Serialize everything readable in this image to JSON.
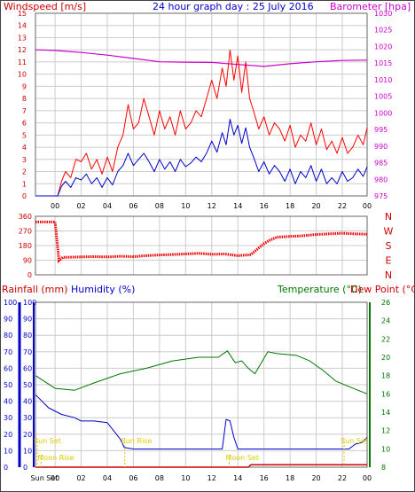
{
  "header": {
    "windspeed_label": "Windspeed [m/s]",
    "title": "24 hour graph day : 25 July 2016",
    "barometer_label": "Barometer [hpa]"
  },
  "labels": {
    "rainfall": "Rainfall (mm)",
    "humidity": "Humidity (%)",
    "temperature": "Temperature (°C)",
    "dewpoint": "Dew Point (°C)"
  },
  "colors": {
    "wind_gust": "#ff0000",
    "wind_avg": "#0000cc",
    "barometer": "#cc00cc",
    "wind_dir": "#ee0000",
    "rain_humidity_axis": "#0000cc",
    "temperature": "#007700",
    "dewpoint": "#cc0000",
    "sun_moon": "#ddcc00",
    "grid": "#cccccc"
  },
  "chart_data": [
    {
      "id": "wind_baro",
      "type": "line",
      "x_ticks": [
        "00",
        "02",
        "04",
        "06",
        "08",
        "10",
        "12",
        "14",
        "16",
        "18",
        "20",
        "22",
        "00"
      ],
      "x_range_hours": [
        -1.5,
        23.9
      ],
      "y_left": {
        "label": "Windspeed [m/s]",
        "ticks": [
          0,
          1,
          2,
          3,
          4,
          5,
          6,
          7,
          8,
          9,
          10,
          11,
          12,
          13,
          14,
          15
        ],
        "range": [
          0,
          15
        ]
      },
      "y_right": {
        "label": "Barometer [hpa]",
        "ticks": [
          975,
          980,
          985,
          990,
          995,
          1000,
          1005,
          1010,
          1015,
          1020,
          1025,
          1030
        ],
        "range": [
          975,
          1030
        ]
      },
      "series": [
        {
          "key": "gust",
          "axis": "left",
          "x": [
            -1.5,
            0.2,
            0.5,
            0.8,
            1.2,
            1.6,
            2.0,
            2.4,
            2.8,
            3.2,
            3.6,
            4.0,
            4.4,
            4.8,
            5.2,
            5.6,
            6.0,
            6.4,
            6.8,
            7.2,
            7.6,
            8.0,
            8.4,
            8.8,
            9.2,
            9.6,
            10.0,
            10.4,
            10.8,
            11.2,
            11.6,
            12.0,
            12.4,
            12.8,
            13.1,
            13.4,
            13.7,
            14.0,
            14.3,
            14.6,
            14.9,
            15.2,
            15.6,
            16.0,
            16.4,
            16.8,
            17.2,
            17.6,
            18.0,
            18.4,
            18.8,
            19.2,
            19.6,
            20.0,
            20.4,
            20.8,
            21.2,
            21.6,
            22.0,
            22.4,
            22.8,
            23.2,
            23.6,
            23.9
          ],
          "y": [
            0,
            0,
            1.2,
            2.0,
            1.5,
            3.0,
            2.8,
            3.5,
            2.2,
            3.0,
            1.8,
            3.2,
            2.0,
            4.0,
            5.0,
            7.5,
            5.5,
            6.0,
            8.0,
            6.5,
            5.0,
            7.0,
            5.5,
            6.5,
            5.0,
            7.0,
            5.5,
            6.0,
            7.0,
            6.5,
            8.0,
            9.5,
            8.0,
            10.5,
            9.0,
            12.0,
            9.5,
            11.5,
            8.5,
            11.0,
            8.0,
            7.0,
            5.5,
            6.5,
            5.0,
            6.0,
            5.5,
            4.5,
            5.8,
            4.0,
            5.0,
            4.5,
            6.0,
            4.2,
            5.5,
            3.8,
            4.5,
            3.5,
            4.8,
            3.5,
            4.0,
            5.0,
            4.2,
            5.6
          ]
        },
        {
          "key": "average",
          "axis": "left",
          "x": [
            -1.5,
            0.2,
            0.5,
            0.8,
            1.2,
            1.6,
            2.0,
            2.4,
            2.8,
            3.2,
            3.6,
            4.0,
            4.4,
            4.8,
            5.2,
            5.6,
            6.0,
            6.4,
            6.8,
            7.2,
            7.6,
            8.0,
            8.4,
            8.8,
            9.2,
            9.6,
            10.0,
            10.4,
            10.8,
            11.2,
            11.6,
            12.0,
            12.4,
            12.8,
            13.1,
            13.4,
            13.7,
            14.0,
            14.3,
            14.6,
            14.9,
            15.2,
            15.6,
            16.0,
            16.4,
            16.8,
            17.2,
            17.6,
            18.0,
            18.4,
            18.8,
            19.2,
            19.6,
            20.0,
            20.4,
            20.8,
            21.2,
            21.6,
            22.0,
            22.4,
            22.8,
            23.2,
            23.6,
            23.9
          ],
          "y": [
            0,
            0,
            0.8,
            1.2,
            0.7,
            1.5,
            1.3,
            1.8,
            1.0,
            1.5,
            0.7,
            1.5,
            0.9,
            2.0,
            2.5,
            3.5,
            2.5,
            3.0,
            3.5,
            2.8,
            2.0,
            3.0,
            2.2,
            2.8,
            2.0,
            3.0,
            2.4,
            2.7,
            3.2,
            2.8,
            3.5,
            4.5,
            3.6,
            5.2,
            4.2,
            6.3,
            5.0,
            5.8,
            4.3,
            5.6,
            4.0,
            3.2,
            2.0,
            2.8,
            1.8,
            2.5,
            2.0,
            1.2,
            2.2,
            1.0,
            2.0,
            1.5,
            2.5,
            1.2,
            2.2,
            1.0,
            1.5,
            1.0,
            2.0,
            1.2,
            1.5,
            2.2,
            1.6,
            2.4
          ]
        },
        {
          "key": "barometer",
          "axis": "right",
          "x": [
            -1.5,
            0,
            2,
            4,
            6,
            8,
            10,
            12,
            14,
            16,
            18,
            20,
            22,
            23.9
          ],
          "y": [
            1019,
            1018.8,
            1018.2,
            1017.4,
            1016.4,
            1015.4,
            1015.3,
            1015.2,
            1014.6,
            1014.0,
            1014.8,
            1015.4,
            1015.8,
            1015.9
          ]
        }
      ]
    },
    {
      "id": "wind_direction",
      "type": "scatter",
      "x_range_hours": [
        -1.5,
        23.9
      ],
      "y_left": {
        "ticks": [
          0,
          90,
          180,
          270,
          360
        ],
        "range": [
          0,
          360
        ]
      },
      "y_right_labels": [
        "N",
        "W",
        "S",
        "E",
        "N"
      ],
      "series": [
        {
          "key": "direction",
          "x": [
            -1.5,
            -1.0,
            -0.5,
            0.0,
            0.3,
            0.6,
            1,
            2,
            3,
            4,
            5,
            6,
            7,
            8,
            9,
            10,
            11,
            12,
            13,
            14,
            15,
            15.5,
            16,
            16.5,
            17,
            18,
            19,
            20,
            21,
            22,
            23,
            23.9
          ],
          "y": [
            325,
            325,
            325,
            325,
            88,
            108,
            108,
            110,
            112,
            110,
            114,
            112,
            118,
            122,
            125,
            128,
            132,
            126,
            128,
            118,
            124,
            158,
            192,
            215,
            232,
            236,
            240,
            248,
            252,
            256,
            252,
            250
          ]
        }
      ]
    },
    {
      "id": "temp_hum_rain",
      "type": "line",
      "x_ticks": [
        "Sun Set",
        "00",
        "02",
        "04",
        "06",
        "08",
        "10",
        "12",
        "14",
        "16",
        "18",
        "20",
        "22",
        "00"
      ],
      "x_range_hours": [
        -1.5,
        23.9
      ],
      "y_left": {
        "label": "Humidity (%)",
        "ticks": [
          0,
          10,
          20,
          30,
          40,
          50,
          60,
          70,
          80,
          90,
          100
        ],
        "range": [
          0,
          100
        ]
      },
      "y_right": {
        "label": "Temperature (°C)",
        "ticks": [
          8,
          10,
          12,
          14,
          16,
          18,
          20,
          22,
          24,
          26
        ],
        "range": [
          8,
          26
        ]
      },
      "series": [
        {
          "key": "humidity",
          "axis": "left",
          "x": [
            -1.5,
            -0.5,
            0.5,
            1.5,
            2.0,
            3.0,
            4.0,
            4.5,
            5.0,
            5.3,
            6.0,
            8.0,
            10.0,
            12.0,
            12.5,
            12.8,
            13.1,
            13.4,
            13.7,
            14.0,
            15.0,
            17.0,
            19.0,
            21.0,
            22.5,
            23.0,
            23.5,
            23.9
          ],
          "y": [
            44,
            36,
            32,
            30,
            28,
            28,
            27,
            22,
            17,
            12,
            11,
            11,
            11,
            11,
            11,
            11,
            29,
            28,
            18,
            11,
            11,
            11,
            11,
            11,
            11,
            14,
            15,
            18
          ]
        },
        {
          "key": "temperature",
          "axis": "right",
          "x": [
            -1.5,
            0,
            1.5,
            3,
            5,
            7,
            9,
            11,
            12.5,
            13.2,
            13.8,
            14.3,
            14.8,
            15.3,
            15.8,
            16.3,
            17,
            18.5,
            19.5,
            20.5,
            21.5,
            22.5,
            23.2,
            23.9
          ],
          "y": [
            18.0,
            16.6,
            16.4,
            17.2,
            18.2,
            18.8,
            19.6,
            20.0,
            20.0,
            20.7,
            19.4,
            19.6,
            18.8,
            18.2,
            19.4,
            20.6,
            20.4,
            20.2,
            19.6,
            18.6,
            17.4,
            16.8,
            16.4,
            16.0
          ]
        },
        {
          "key": "rainfall",
          "axis": "left",
          "x": [
            -1.5,
            14.8,
            15.0,
            23.9
          ],
          "y": [
            0,
            0,
            1.5,
            1.5
          ]
        }
      ],
      "events": [
        {
          "label": "Sun Set",
          "hour": -1.5,
          "text_row": 1
        },
        {
          "label": "Moon Rise",
          "hour": -1.2,
          "text_row": 2
        },
        {
          "label": "Sun Rise",
          "hour": 5.2,
          "text_row": 1
        },
        {
          "label": "Moon Set",
          "hour": 13.2,
          "text_row": 2
        },
        {
          "label": "Sun Set",
          "hour": 22.0,
          "text_row": 1
        }
      ]
    }
  ]
}
